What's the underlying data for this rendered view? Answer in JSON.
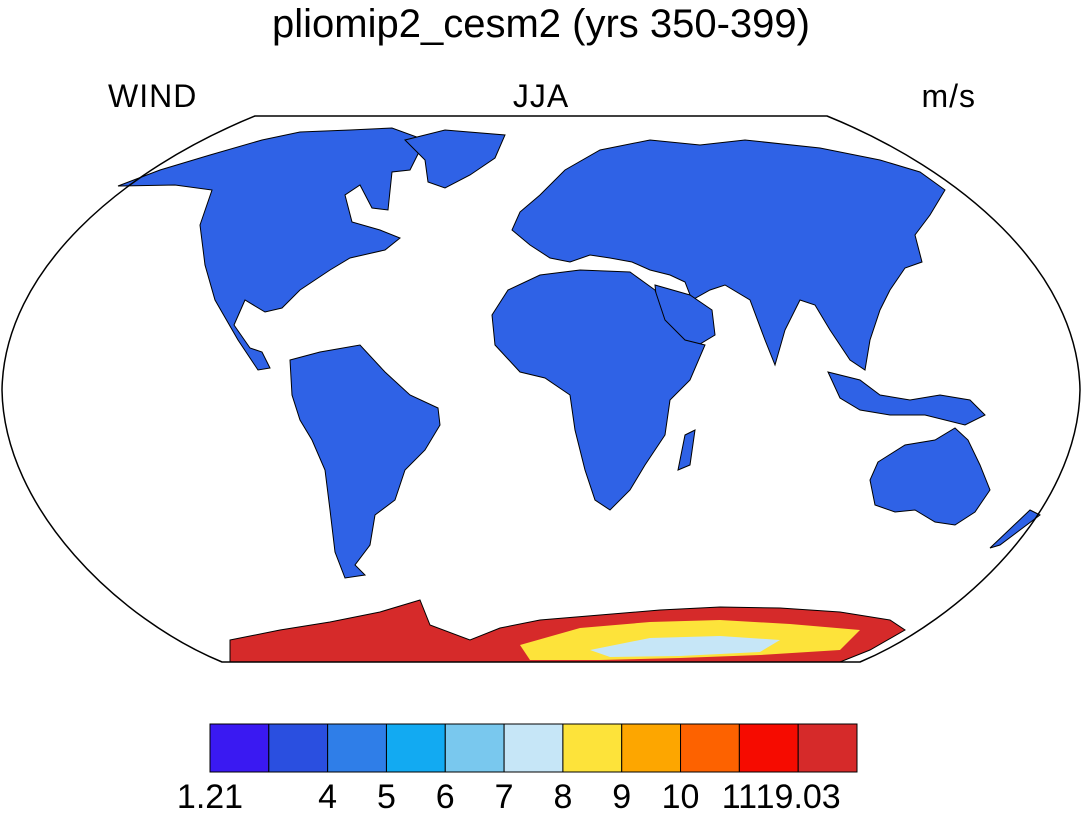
{
  "title": "pliomip2_cesm2 (yrs 350-399)",
  "left_label": "WIND",
  "center_label": "JJA",
  "right_label": "m/s",
  "colorbar": {
    "colors": [
      "#3a19f2",
      "#2a4fe0",
      "#2f7ee8",
      "#12aaf2",
      "#79c8ee",
      "#c6e6f7",
      "#fde33a",
      "#fda600",
      "#fd6200",
      "#f60b00",
      "#d62a2a"
    ],
    "labels": [
      "1.21",
      "4",
      "5",
      "6",
      "7",
      "8",
      "9",
      "10",
      "11",
      "19.03"
    ]
  },
  "map": {
    "land_color": "#2f62e6",
    "coastline_color": "#000000",
    "antarctic_colors": [
      "#d62a2a",
      "#fd6200",
      "#fde33a",
      "#c6e6f7"
    ]
  }
}
